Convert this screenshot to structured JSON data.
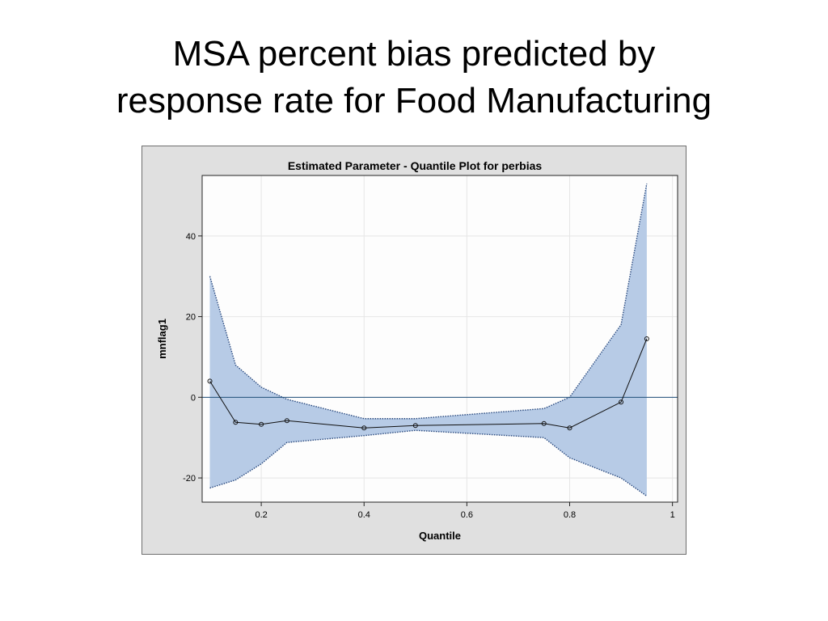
{
  "slide": {
    "title_line1": "MSA percent bias predicted by",
    "title_line2": "response rate for Food Manufacturing"
  },
  "chart_data": {
    "type": "line",
    "title": "Estimated Parameter - Quantile Plot for  perbias",
    "xlabel": "Quantile",
    "ylabel": "mnflag1",
    "xlim": [
      0.085,
      1.01
    ],
    "ylim": [
      -26,
      55
    ],
    "x_ticks": [
      0.2,
      0.4,
      0.6,
      0.8,
      1
    ],
    "x_tick_labels": [
      "0.2",
      "0.4",
      "0.6",
      "0.8",
      "1"
    ],
    "y_ticks": [
      -20,
      0,
      20,
      40
    ],
    "y_tick_labels": [
      "-20",
      "0",
      "20",
      "40"
    ],
    "grid": true,
    "reference_line_y": 0,
    "colors": {
      "band_fill": "#b7cbe6",
      "band_edge": "#2a4a7f",
      "estimate_line": "#111111",
      "reference_line": "#1f4e79",
      "grid": "#e6e6e6",
      "plot_background": "#fdfdfd",
      "frame_background": "#e0e0e0"
    },
    "x": [
      0.1,
      0.15,
      0.2,
      0.25,
      0.4,
      0.5,
      0.75,
      0.8,
      0.9,
      0.95
    ],
    "estimate": [
      4.0,
      -6.2,
      -6.7,
      -5.8,
      -7.6,
      -7.0,
      -6.5,
      -7.6,
      -1.2,
      14.5
    ],
    "upper": [
      30.0,
      8.0,
      2.5,
      -0.5,
      -5.3,
      -5.3,
      -2.8,
      0.0,
      18.0,
      53.0
    ],
    "lower": [
      -22.5,
      -20.5,
      -16.5,
      -11.2,
      -9.5,
      -8.2,
      -10.0,
      -15.0,
      -20.0,
      -24.5
    ]
  }
}
